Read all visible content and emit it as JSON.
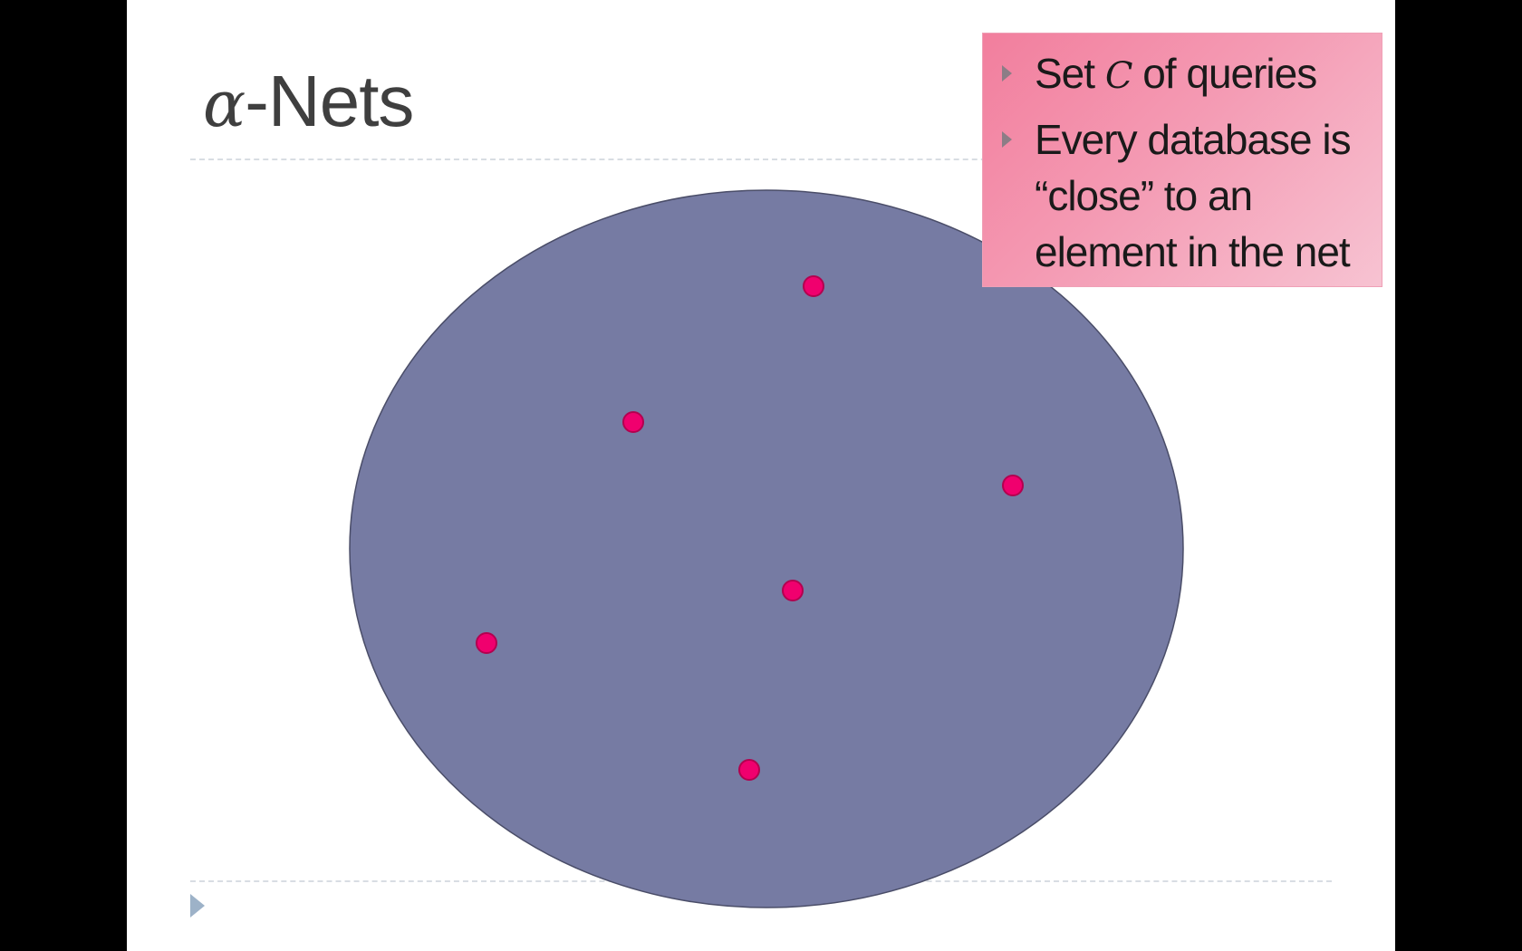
{
  "slide": {
    "title_symbol": "α",
    "title_text": "-Nets",
    "callout": {
      "bullets": [
        {
          "before": "Set ",
          "math": "C",
          "after": " of queries"
        },
        {
          "before": "Every database is “close” to an element in the net",
          "math": "",
          "after": ""
        }
      ]
    },
    "colors": {
      "set_fill": "#767ba3",
      "set_stroke": "#4a4d68",
      "point_fill": "#f0006e",
      "point_stroke": "#b3004f",
      "callout_fill": "#f49ab3"
    },
    "net_points_count": 6
  }
}
